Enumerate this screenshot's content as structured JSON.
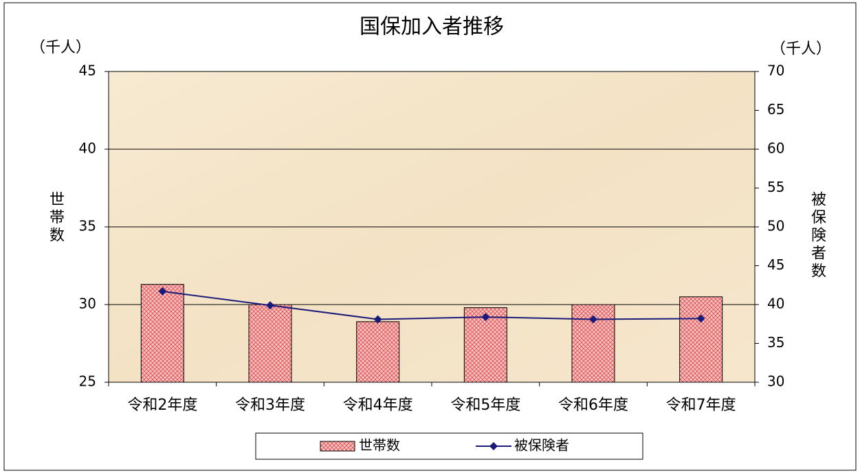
{
  "chart_data": {
    "type": "bar",
    "title": "国保加入者推移",
    "y_unit": "（千人）",
    "y2_unit": "（千人）",
    "y_label": "世帯数",
    "y2_label": "被保険者数",
    "categories": [
      "令和2年度",
      "令和3年度",
      "令和4年度",
      "令和5年度",
      "令和6年度",
      "令和7年度"
    ],
    "series": [
      {
        "name": "世帯数",
        "type": "bar",
        "color": "#f2b0b0",
        "values": [
          31.3,
          30.0,
          28.9,
          29.8,
          30.0,
          30.5
        ]
      },
      {
        "name": "被保険者",
        "type": "line",
        "axis": "y2",
        "color": "#1a1a7a",
        "values": [
          41.7,
          39.9,
          38.1,
          38.4,
          38.1,
          38.2
        ]
      }
    ],
    "ylim": [
      25,
      45
    ],
    "yticks": [
      25,
      30,
      35,
      40,
      45
    ],
    "y2lim": [
      30,
      70
    ],
    "y2ticks": [
      30,
      35,
      40,
      45,
      50,
      55,
      60,
      65,
      70
    ],
    "grid": true
  }
}
